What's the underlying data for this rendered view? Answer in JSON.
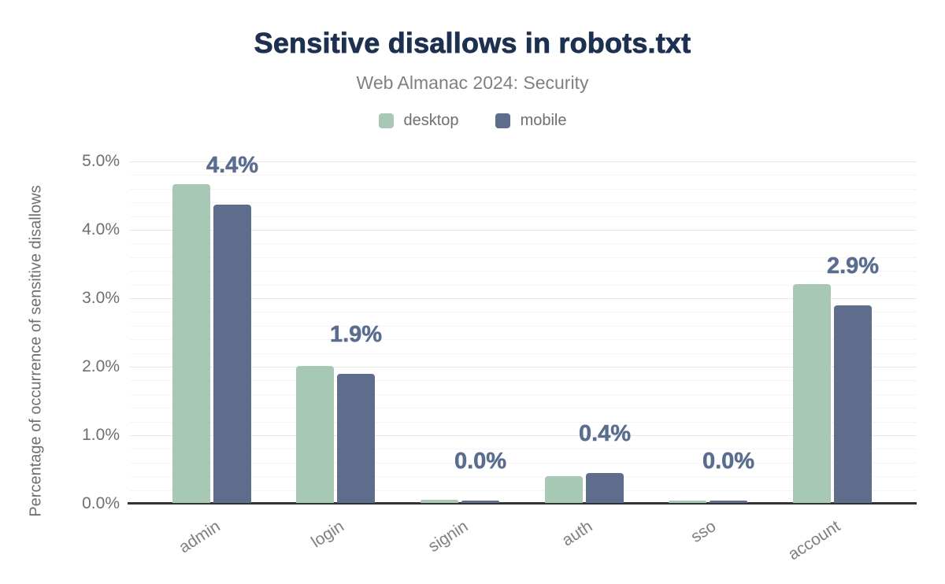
{
  "chart_data": {
    "type": "bar",
    "title": "Sensitive disallows in robots.txt",
    "subtitle": "Web Almanac 2024: Security",
    "ylabel": "Percentage of occurrence of sensitive disallows",
    "xlabel": "",
    "categories": [
      "admin",
      "login",
      "signin",
      "auth",
      "sso",
      "account"
    ],
    "series": [
      {
        "name": "desktop",
        "color": "#a8c8b6",
        "values": [
          4.65,
          2.0,
          0.05,
          0.39,
          0.03,
          3.19
        ]
      },
      {
        "name": "mobile",
        "color": "#5e6d8b",
        "values": [
          4.36,
          1.88,
          0.03,
          0.44,
          0.03,
          2.88
        ]
      }
    ],
    "data_labels": [
      "4.4%",
      "1.9%",
      "0.0%",
      "0.4%",
      "0.0%",
      "2.9%"
    ],
    "data_labels_follow_series": "mobile",
    "ylim": [
      0,
      5
    ],
    "yticks": [
      "0.0%",
      "1.0%",
      "2.0%",
      "3.0%",
      "4.0%",
      "5.0%"
    ],
    "grid": {
      "major_step_pct": 1.0,
      "minor_step_pct": 0.2,
      "grid_on": true
    },
    "legend_position": "top"
  },
  "colors": {
    "title": "#1e3050",
    "subtitle": "#808080",
    "axis_text": "#6f6f6f",
    "value_label": "#5a6d8f",
    "axis_line": "#333333",
    "grid_major": "#e7e7e7",
    "grid_minor": "#f5f5f5",
    "background": "#ffffff"
  }
}
